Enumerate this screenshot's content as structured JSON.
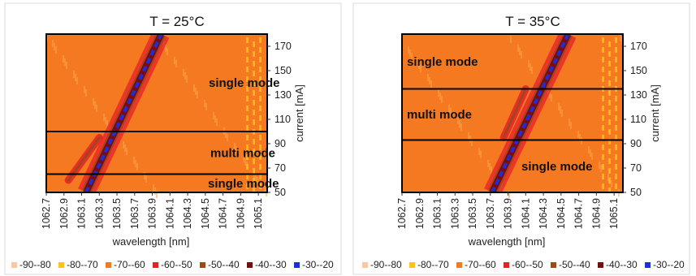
{
  "chart_data": [
    {
      "type": "heatmap",
      "title": "T = 25°C",
      "xlabel": "wavelength [nm]",
      "ylabel": "current [mA]",
      "x_ticks": [
        "1062.7",
        "1062.9",
        "1063.1",
        "1063.3",
        "1063.5",
        "1063.7",
        "1063.9",
        "1064.1",
        "1064.3",
        "1064.5",
        "1064.7",
        "1064.9",
        "1065.1"
      ],
      "y_ticks": [
        "50",
        "70",
        "90",
        "110",
        "130",
        "150",
        "170"
      ],
      "xlim": [
        1062.7,
        1065.2
      ],
      "ylim": [
        50,
        180
      ],
      "regions": [
        {
          "label": "single mode",
          "current_range": [
            100,
            180
          ]
        },
        {
          "label": "multi mode",
          "current_range": [
            65,
            100
          ]
        },
        {
          "label": "single mode",
          "current_range": [
            50,
            65
          ]
        }
      ],
      "main_peak": {
        "wavelength_start": 1063.15,
        "current_start": 50,
        "wavelength_end": 1064.0,
        "current_end": 180
      },
      "side_peak": {
        "wavelength_start": 1062.95,
        "current_start": 60,
        "wavelength_end": 1063.3,
        "current_end": 95
      },
      "background_level": "-70--60"
    },
    {
      "type": "heatmap",
      "title": "T = 35°C",
      "xlabel": "wavelength [nm]",
      "ylabel": "current [mA]",
      "x_ticks": [
        "1062.7",
        "1062.9",
        "1063.1",
        "1063.3",
        "1063.5",
        "1063.7",
        "1063.9",
        "1064.1",
        "1064.3",
        "1064.5",
        "1064.7",
        "1064.9",
        "1065.1"
      ],
      "y_ticks": [
        "50",
        "70",
        "90",
        "110",
        "130",
        "150",
        "170"
      ],
      "xlim": [
        1062.7,
        1065.2
      ],
      "ylim": [
        50,
        180
      ],
      "regions": [
        {
          "label": "single mode",
          "current_range": [
            135,
            180
          ]
        },
        {
          "label": "multi mode",
          "current_range": [
            93,
            135
          ]
        },
        {
          "label": "single mode",
          "current_range": [
            50,
            93
          ]
        }
      ],
      "main_peak": {
        "wavelength_start": 1063.72,
        "current_start": 50,
        "wavelength_end": 1064.58,
        "current_end": 180
      },
      "side_peak": {
        "wavelength_start": 1063.85,
        "current_start": 95,
        "wavelength_end": 1064.1,
        "current_end": 135
      },
      "background_level": "-70--60"
    }
  ],
  "legend": [
    {
      "label": "-90--80",
      "color": "#f7c9a6"
    },
    {
      "label": "-80--70",
      "color": "#f5c518"
    },
    {
      "label": "-70--60",
      "color": "#f47920"
    },
    {
      "label": "-60--50",
      "color": "#e8202a"
    },
    {
      "label": "-50--40",
      "color": "#a0461c"
    },
    {
      "label": "-40--30",
      "color": "#7a0b10"
    },
    {
      "label": "-30--20",
      "color": "#1f2ed6"
    }
  ]
}
